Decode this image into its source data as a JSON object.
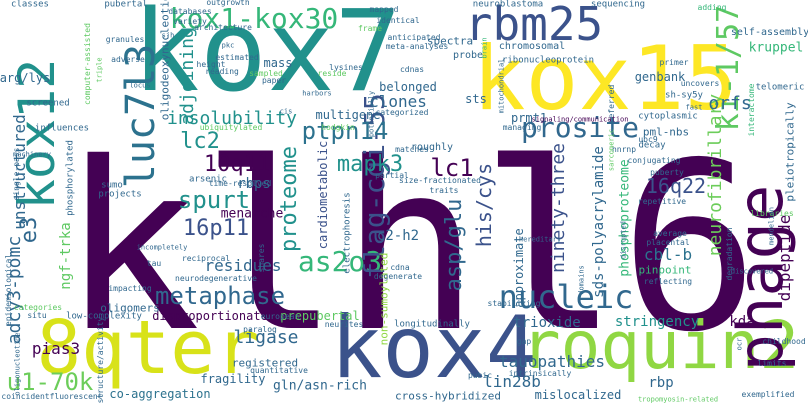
{
  "palette": {
    "deep_purple": "#440154",
    "indigo": "#3b528b",
    "blue": "#31688e",
    "teal": "#21918c",
    "green": "#35b779",
    "lime": "#90d743",
    "yellow": "#fde725"
  },
  "words": {
    "klhl6": "klhl6",
    "kox7": "kox7",
    "kox15": "kox15",
    "kox4": "kox4",
    "roquin2": "roquin2",
    "phage": "phage",
    "8qter": "8qter",
    "rbm25": "rbm25",
    "kox12": "kox12",
    "luc7l3": "luc7l3",
    "kox1_kox30": "kox1-kox30",
    "ki_1_57": "ki-1/57",
    "nucleic": "nucleic",
    "metaphase": "metaphase",
    "u1_70k": "u1-70k",
    "as2o3": "as2o3",
    "flag_cgi_55": "flag-cgi-55",
    "ptpn14": "ptpn14",
    "prosite": "prosite",
    "mapk3": "mapk3",
    "lc1": "lc1",
    "lc2": "lc2",
    "10q11": "10q11",
    "16p11": "16p11",
    "16q22": "16q22",
    "spurt": "spurt",
    "proteome": "proteome",
    "insolubility": "insolubility",
    "adcy3_pomc": "adcy3-pomc",
    "e3": "e3",
    "adjoining": "adjoining",
    "ngf_trka": "ngf-trka",
    "asp_glu": "asp/glu",
    "his_cys": "his/cys",
    "ninety_three": "ninety-three",
    "neurofibrillary": "neurofibrillary",
    "dipeptide": "dipeptide",
    "orfs": "orfs",
    "kruppel": "kruppel",
    "ligase": "ligase",
    "residues": "residues",
    "pias3": "pias3",
    "unstructured": "unstructured",
    "kda": "kda",
    "tauopathies": "tauopathies",
    "lin28b": "lin28b",
    "trioxide": "trioxide",
    "stringency": "stringency",
    "cbl_b": "cbl-b",
    "rbp": "rbp",
    "clones": "clones",
    "rbps": "rbps",
    "c2_h2": "c2-h2",
    "sds_polyacrylamide": "sds-polyacrylamide",
    "phosphoproteome": "phosphoproteome",
    "approximate": "approximate",
    "prepubertal": "prepubertal",
    "disproportionate": "disproportionate",
    "gln_asn_rich": "gln/asn-rich",
    "co_aggregation": "co-aggregation",
    "fragility": "fragility",
    "registered": "registered",
    "mislocalized": "mislocalized",
    "cross_hybridized": "cross-hybridized",
    "menarche": "menarche",
    "cardiometabolic": "cardiometabolic",
    "non_sumoylated": "non-sumoylated",
    "arg_lys": "arg/lys",
    "oligodeoxynucleotide": "oligodeoxynucleotide",
    "mass": "mass",
    "sts": "sts",
    "multigene": "multigene",
    "prmt1": "prmt1",
    "pml_nbs": "pml-nbs",
    "genbank": "genbank",
    "belonged": "belonged",
    "chromosomal": "chromosomal",
    "pinpoint": "pinpoint",
    "neuroblastoma": "neuroblastoma",
    "self_assembly": "self-assembly",
    "pleiotropically": "pleiotropically",
    "oligomers": "oligomers",
    "sequencing": "sequencing",
    "spectra": "spectra",
    "probe": "probe",
    "ribonucleoprotein": "ribonucleoprotein",
    "telomeric": "telomeric",
    "sh_sy5y": "sh-sy5y",
    "decay": "decay",
    "cytoplasmic": "cytoplasmic",
    "roughly": "roughly",
    "classes": "classes",
    "pubertal": "pubertal",
    "outgrowth": "outgrowth",
    "databases": "databases",
    "variety": "variety",
    "architecture": "architecture",
    "mapped": "mapped",
    "identical": "identical",
    "frame": "frame",
    "anticipated": "anticipated",
    "meta_analyses": "meta-analyses",
    "estimated": "estimated",
    "granules": "granules",
    "height": "height",
    "reading": "reading",
    "lysines": "lysines",
    "sampled": "sampled",
    "paper": "paper",
    "reside": "reside",
    "cdnas": "cdnas",
    "screened": "screened",
    "computer_assisted": "computer-assisted",
    "adverse": "adverse",
    "influences": "influences",
    "categorized": "categorized",
    "ubiquitylated": "ubiquitylated",
    "hodgkin": "hodgkin",
    "arsenic": "arsenic",
    "time_resolved": "time-resolved",
    "sumo": "sumo",
    "projects": "projects",
    "phosphorylated": "phosphorylated",
    "single_pass": "single-pass",
    "epidemiological": "epidemiological",
    "situ": "situ",
    "reciprocal": "reciprocal",
    "tau": "tau",
    "neurodegenerative": "neurodegenerative",
    "shares": "shares",
    "electrophoresis": "electrophoresis",
    "partial": "partial",
    "size_fractionated": "size-fractionated",
    "traits": "traits",
    "matches": "matches",
    "cdna": "cdna",
    "degenerate": "degenerate",
    "impacting": "impacting",
    "low_complexity": "low-complexity",
    "european": "european",
    "paralog": "paralog",
    "neurites": "neurites",
    "quantitative": "quantitative",
    "longitudinally": "longitudinally",
    "coincidentfluorescent": "coincidentfluorescent",
    "categories": "categories",
    "stabilizing": "stabilizing",
    "repetitive": "repetitive",
    "puberty": "puberty",
    "conjugating": "conjugating",
    "average": "average",
    "placental": "placental",
    "reflecting": "reflecting",
    "degradation": "degradation",
    "pubic": "pubic",
    "intrinsically": "intrinsically",
    "gap": "gap",
    "limits": "limits",
    "childhood": "childhood",
    "exemplified": "exemplified",
    "primer": "primer",
    "uncovers": "uncovers",
    "interactome": "interactome",
    "referred": "referred",
    "managing": "managing",
    "adding": "adding",
    "signaling_communication": "signaling/communication",
    "hnrnp": "hnrnp",
    "ubc9": "ubc9",
    "sarcomeric": "sarcomeric",
    "libraries": "libraries",
    "discovered": "discovered",
    "machinery": "machinery",
    "structure_activity": "structure/activity",
    "oligonucleotide": "oligonucleotide",
    "triple": "triple",
    "sjh": "sjh",
    "pkc": "pkc",
    "harbors": "harbors",
    "tropomyosin_related": "tropomyosin-related",
    "ocr": "ocr",
    "potentially": "potentially",
    "cis": "cis",
    "brain": "brain",
    "mitochondrial": "mitochondrial",
    "incompletely": "incompletely",
    "domains": "domains",
    "fast": "fast",
    "locus": "locus",
    "disrupted": "disrupted",
    "mendelian": "mendelian",
    "hereditary": "hereditary"
  }
}
